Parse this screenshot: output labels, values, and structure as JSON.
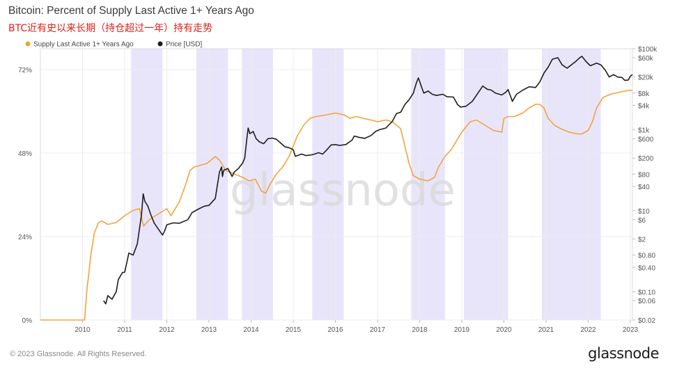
{
  "title": "Bitcoin: Percent of Supply Last Active 1+ Years Ago",
  "subtitle": "BTC近有史以来长期（持仓超过一年）持有走势",
  "footer": "© 2023 Glassnode. All Rights Reserved.",
  "brand": "glassnode",
  "watermark": "glassnode",
  "colors": {
    "supply": "#f2a33a",
    "price": "#1c1c1c",
    "shade": "#e4e0fa",
    "grid": "#ececec"
  },
  "chart_data": {
    "type": "line",
    "title": "Bitcoin: Percent of Supply Last Active 1+ Years Ago",
    "legend": [
      "Supply Last Active 1+ Years Ago",
      "Price [USD]"
    ],
    "legend_placement": "top-left",
    "x_ticks": [
      "2010",
      "2011",
      "2012",
      "2013",
      "2014",
      "2015",
      "2016",
      "2017",
      "2018",
      "2019",
      "2020",
      "2021",
      "2022",
      "2023"
    ],
    "xlim": [
      2009.0,
      2023.05
    ],
    "y_left": {
      "ticks": [
        "0%",
        "24%",
        "48%",
        "72%"
      ],
      "tick_values": [
        0,
        24,
        48,
        72
      ],
      "ylim": [
        0,
        78
      ]
    },
    "y_right": {
      "scale": "log",
      "ticks": [
        "$100k",
        "$60k",
        "$20k",
        "$8k",
        "$4k",
        "$1k",
        "$600",
        "$200",
        "$80",
        "$40",
        "$10",
        "$6",
        "$2",
        "$0.80",
        "$0.40",
        "$0.10",
        "$0.06",
        "$0.02"
      ],
      "tick_values": [
        100000,
        60000,
        20000,
        8000,
        4000,
        1000,
        600,
        200,
        80,
        40,
        10,
        6,
        2,
        0.8,
        0.4,
        0.1,
        0.06,
        0.02
      ],
      "ylim": [
        0.02,
        100000
      ]
    },
    "shaded_periods": [
      [
        2011.15,
        2011.9
      ],
      [
        2012.7,
        2013.45
      ],
      [
        2013.78,
        2014.52
      ],
      [
        2015.45,
        2016.2
      ],
      [
        2017.8,
        2018.6
      ],
      [
        2019.05,
        2020.1
      ],
      [
        2020.9,
        2022.3
      ]
    ],
    "series": [
      {
        "name": "Supply Last Active 1+ Years Ago",
        "axis": "left",
        "points": [
          [
            2009.0,
            0
          ],
          [
            2010.05,
            0
          ],
          [
            2010.1,
            8
          ],
          [
            2010.2,
            19
          ],
          [
            2010.28,
            25
          ],
          [
            2010.38,
            28
          ],
          [
            2010.45,
            28.5
          ],
          [
            2010.6,
            27.5
          ],
          [
            2010.8,
            28
          ],
          [
            2011.0,
            30
          ],
          [
            2011.2,
            31.5
          ],
          [
            2011.35,
            32
          ],
          [
            2011.45,
            27
          ],
          [
            2011.6,
            29
          ],
          [
            2011.8,
            30.5
          ],
          [
            2012.0,
            32
          ],
          [
            2012.1,
            30
          ],
          [
            2012.3,
            34
          ],
          [
            2012.45,
            39
          ],
          [
            2012.55,
            43
          ],
          [
            2012.65,
            44
          ],
          [
            2012.8,
            44.5
          ],
          [
            2012.95,
            45
          ],
          [
            2013.15,
            47
          ],
          [
            2013.25,
            46
          ],
          [
            2013.4,
            43
          ],
          [
            2013.6,
            42
          ],
          [
            2013.8,
            41
          ],
          [
            2013.95,
            40
          ],
          [
            2014.1,
            40.5
          ],
          [
            2014.25,
            37
          ],
          [
            2014.35,
            36.5
          ],
          [
            2014.45,
            39
          ],
          [
            2014.6,
            42
          ],
          [
            2014.75,
            44
          ],
          [
            2014.9,
            47
          ],
          [
            2015.0,
            50
          ],
          [
            2015.1,
            53
          ],
          [
            2015.25,
            56
          ],
          [
            2015.4,
            58
          ],
          [
            2015.55,
            58.5
          ],
          [
            2015.8,
            59
          ],
          [
            2016.0,
            59.5
          ],
          [
            2016.2,
            59
          ],
          [
            2016.35,
            58
          ],
          [
            2016.5,
            58.5
          ],
          [
            2016.65,
            58
          ],
          [
            2016.85,
            57.5
          ],
          [
            2017.0,
            57
          ],
          [
            2017.2,
            57.5
          ],
          [
            2017.35,
            57
          ],
          [
            2017.55,
            55
          ],
          [
            2017.65,
            50
          ],
          [
            2017.75,
            45
          ],
          [
            2017.85,
            41.5
          ],
          [
            2018.0,
            40.5
          ],
          [
            2018.2,
            40
          ],
          [
            2018.35,
            41
          ],
          [
            2018.45,
            44
          ],
          [
            2018.6,
            47
          ],
          [
            2018.75,
            49
          ],
          [
            2018.9,
            52
          ],
          [
            2019.0,
            54
          ],
          [
            2019.1,
            55.5
          ],
          [
            2019.2,
            57
          ],
          [
            2019.35,
            57.5
          ],
          [
            2019.55,
            56
          ],
          [
            2019.75,
            54.5
          ],
          [
            2019.95,
            54
          ],
          [
            2020.0,
            58
          ],
          [
            2020.1,
            58.5
          ],
          [
            2020.25,
            58.5
          ],
          [
            2020.45,
            59.5
          ],
          [
            2020.6,
            61
          ],
          [
            2020.75,
            62
          ],
          [
            2020.85,
            62
          ],
          [
            2020.95,
            61
          ],
          [
            2021.05,
            58
          ],
          [
            2021.2,
            56
          ],
          [
            2021.35,
            55
          ],
          [
            2021.55,
            54
          ],
          [
            2021.75,
            53.5
          ],
          [
            2021.85,
            53.5
          ],
          [
            2022.0,
            54.5
          ],
          [
            2022.1,
            57
          ],
          [
            2022.2,
            61
          ],
          [
            2022.35,
            64
          ],
          [
            2022.55,
            65
          ],
          [
            2022.75,
            65.5
          ],
          [
            2022.95,
            66
          ],
          [
            2023.05,
            66
          ]
        ]
      },
      {
        "name": "Price [USD]",
        "axis": "right",
        "points": [
          [
            2010.5,
            0.06
          ],
          [
            2010.55,
            0.05
          ],
          [
            2010.6,
            0.08
          ],
          [
            2010.7,
            0.065
          ],
          [
            2010.8,
            0.1
          ],
          [
            2010.85,
            0.2
          ],
          [
            2010.95,
            0.3
          ],
          [
            2011.0,
            0.3
          ],
          [
            2011.1,
            0.9
          ],
          [
            2011.2,
            0.8
          ],
          [
            2011.3,
            1.5
          ],
          [
            2011.4,
            8
          ],
          [
            2011.44,
            26
          ],
          [
            2011.48,
            17
          ],
          [
            2011.55,
            13
          ],
          [
            2011.62,
            8
          ],
          [
            2011.7,
            5
          ],
          [
            2011.8,
            3.5
          ],
          [
            2011.9,
            2.5
          ],
          [
            2011.95,
            3.2
          ],
          [
            2012.0,
            4.5
          ],
          [
            2012.15,
            5
          ],
          [
            2012.3,
            4.9
          ],
          [
            2012.5,
            6
          ],
          [
            2012.6,
            9
          ],
          [
            2012.75,
            11
          ],
          [
            2012.9,
            13
          ],
          [
            2013.0,
            13.5
          ],
          [
            2013.15,
            20
          ],
          [
            2013.25,
            90
          ],
          [
            2013.3,
            120
          ],
          [
            2013.32,
            70
          ],
          [
            2013.35,
            100
          ],
          [
            2013.45,
            110
          ],
          [
            2013.55,
            70
          ],
          [
            2013.6,
            90
          ],
          [
            2013.7,
            110
          ],
          [
            2013.8,
            150
          ],
          [
            2013.85,
            200
          ],
          [
            2013.9,
            600
          ],
          [
            2013.93,
            1100
          ],
          [
            2013.97,
            800
          ],
          [
            2014.05,
            900
          ],
          [
            2014.12,
            600
          ],
          [
            2014.2,
            500
          ],
          [
            2014.3,
            450
          ],
          [
            2014.4,
            600
          ],
          [
            2014.5,
            620
          ],
          [
            2014.6,
            580
          ],
          [
            2014.7,
            470
          ],
          [
            2014.8,
            380
          ],
          [
            2014.9,
            360
          ],
          [
            2015.0,
            320
          ],
          [
            2015.05,
            220
          ],
          [
            2015.2,
            250
          ],
          [
            2015.3,
            230
          ],
          [
            2015.45,
            240
          ],
          [
            2015.6,
            270
          ],
          [
            2015.7,
            250
          ],
          [
            2015.8,
            320
          ],
          [
            2015.9,
            420
          ],
          [
            2016.0,
            430
          ],
          [
            2016.1,
            410
          ],
          [
            2016.25,
            430
          ],
          [
            2016.4,
            560
          ],
          [
            2016.45,
            700
          ],
          [
            2016.55,
            650
          ],
          [
            2016.7,
            610
          ],
          [
            2016.85,
            720
          ],
          [
            2016.95,
            900
          ],
          [
            2017.05,
            1000
          ],
          [
            2017.2,
            1100
          ],
          [
            2017.35,
            1600
          ],
          [
            2017.45,
            2500
          ],
          [
            2017.55,
            2700
          ],
          [
            2017.65,
            4200
          ],
          [
            2017.75,
            5500
          ],
          [
            2017.85,
            8000
          ],
          [
            2017.93,
            15000
          ],
          [
            2017.97,
            19000
          ],
          [
            2018.05,
            11000
          ],
          [
            2018.1,
            8000
          ],
          [
            2018.2,
            9000
          ],
          [
            2018.3,
            7500
          ],
          [
            2018.4,
            7000
          ],
          [
            2018.55,
            7500
          ],
          [
            2018.65,
            6500
          ],
          [
            2018.8,
            6400
          ],
          [
            2018.9,
            4200
          ],
          [
            2018.97,
            3600
          ],
          [
            2019.1,
            3800
          ],
          [
            2019.25,
            5000
          ],
          [
            2019.4,
            8500
          ],
          [
            2019.5,
            12000
          ],
          [
            2019.6,
            10000
          ],
          [
            2019.7,
            9500
          ],
          [
            2019.8,
            8000
          ],
          [
            2019.95,
            7200
          ],
          [
            2020.05,
            8500
          ],
          [
            2020.1,
            9800
          ],
          [
            2020.2,
            5000
          ],
          [
            2020.3,
            7500
          ],
          [
            2020.45,
            9500
          ],
          [
            2020.6,
            11500
          ],
          [
            2020.75,
            11000
          ],
          [
            2020.85,
            15000
          ],
          [
            2020.95,
            25000
          ],
          [
            2021.05,
            35000
          ],
          [
            2021.15,
            55000
          ],
          [
            2021.28,
            60000
          ],
          [
            2021.38,
            40000
          ],
          [
            2021.5,
            33000
          ],
          [
            2021.6,
            40000
          ],
          [
            2021.7,
            48000
          ],
          [
            2021.8,
            60000
          ],
          [
            2021.85,
            65000
          ],
          [
            2021.95,
            48000
          ],
          [
            2022.05,
            38000
          ],
          [
            2022.2,
            44000
          ],
          [
            2022.3,
            40000
          ],
          [
            2022.4,
            30000
          ],
          [
            2022.5,
            20000
          ],
          [
            2022.6,
            23000
          ],
          [
            2022.7,
            20000
          ],
          [
            2022.8,
            19500
          ],
          [
            2022.87,
            16500
          ],
          [
            2022.95,
            16800
          ],
          [
            2023.0,
            21000
          ],
          [
            2023.05,
            23000
          ]
        ]
      }
    ]
  }
}
